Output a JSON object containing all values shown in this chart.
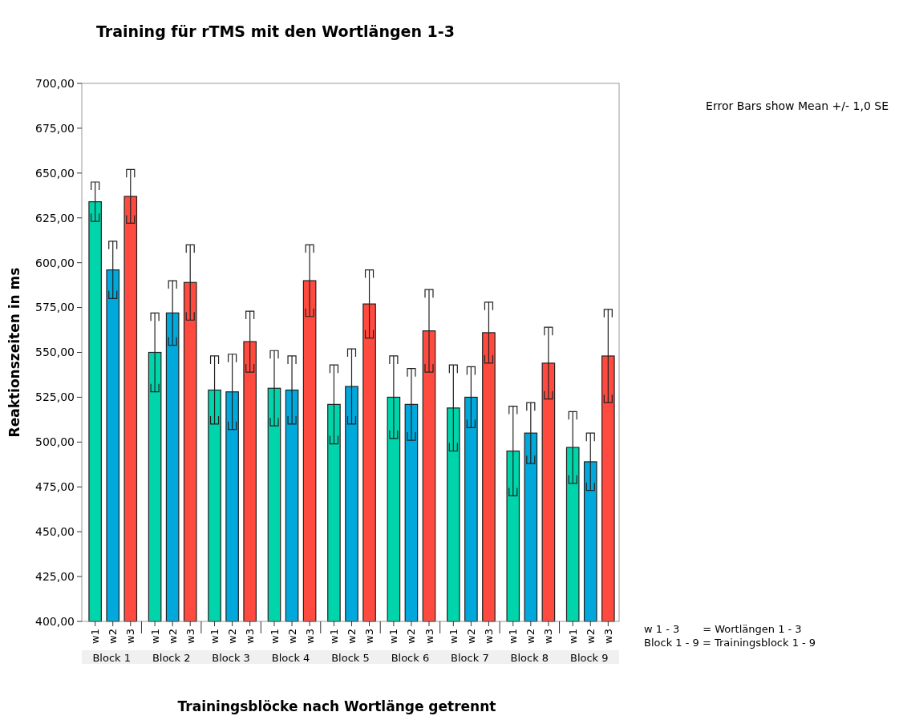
{
  "chart_data": {
    "type": "bar",
    "title": "Training für rTMS mit den Wortlängen 1-3",
    "xlabel": "Trainingsblöcke  nach Wortlänge getrennt",
    "ylabel": "Reaktionszeiten in  ms",
    "categories": [
      "Block 1",
      "Block 2",
      "Block 3",
      "Block 4",
      "Block 5",
      "Block 6",
      "Block 7",
      "Block 8",
      "Block 9"
    ],
    "series": [
      {
        "name": "w1",
        "color": "#00d4aa",
        "values": [
          634,
          550,
          529,
          530,
          521,
          525,
          519,
          495,
          497
        ],
        "errors": [
          11,
          22,
          19,
          21,
          22,
          23,
          24,
          25,
          20
        ]
      },
      {
        "name": "w2",
        "color": "#00a8dc",
        "values": [
          596,
          572,
          528,
          529,
          531,
          521,
          525,
          505,
          489
        ],
        "errors": [
          16,
          18,
          21,
          19,
          21,
          20,
          17,
          17,
          16
        ]
      },
      {
        "name": "w3",
        "color": "#ff4a3f",
        "values": [
          637,
          589,
          556,
          590,
          577,
          562,
          561,
          544,
          548
        ],
        "errors": [
          15,
          21,
          17,
          20,
          19,
          23,
          17,
          20,
          26
        ]
      }
    ],
    "ylim": [
      400,
      700
    ],
    "yticks": [
      {
        "value": 400,
        "label": "400,00"
      },
      {
        "value": 425,
        "label": "425,00"
      },
      {
        "value": 450,
        "label": "450,00"
      },
      {
        "value": 475,
        "label": "475,00"
      },
      {
        "value": 500,
        "label": "500,00"
      },
      {
        "value": 525,
        "label": "525,00"
      },
      {
        "value": 550,
        "label": "550,00"
      },
      {
        "value": 575,
        "label": "575,00"
      },
      {
        "value": 600,
        "label": "600,00"
      },
      {
        "value": 625,
        "label": "625,00"
      },
      {
        "value": 650,
        "label": "650,00"
      },
      {
        "value": 675,
        "label": "675,00"
      },
      {
        "value": 700,
        "label": "700,00"
      }
    ],
    "grid": false,
    "annotations": [
      "Error Bars show Mean +/- 1,0 SE",
      "w 1 - 3       = Wortlängen 1 - 3",
      "Block 1 - 9 = Trainingsblock 1 - 9"
    ]
  }
}
